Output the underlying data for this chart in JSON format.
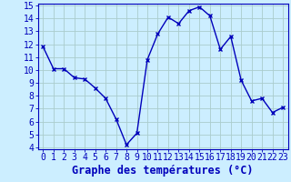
{
  "x": [
    0,
    1,
    2,
    3,
    4,
    5,
    6,
    7,
    8,
    9,
    10,
    11,
    12,
    13,
    14,
    15,
    16,
    17,
    18,
    19,
    20,
    21,
    22,
    23
  ],
  "y": [
    11.8,
    10.1,
    10.1,
    9.4,
    9.3,
    8.6,
    7.8,
    6.2,
    4.2,
    5.1,
    10.8,
    12.8,
    14.1,
    13.6,
    14.6,
    14.9,
    14.2,
    11.6,
    12.6,
    9.2,
    7.6,
    7.8,
    6.7,
    7.1
  ],
  "xlabel": "Graphe des températures (°C)",
  "ylim_min": 4,
  "ylim_max": 15,
  "xlim_min": 0,
  "xlim_max": 23,
  "yticks": [
    4,
    5,
    6,
    7,
    8,
    9,
    10,
    11,
    12,
    13,
    14,
    15
  ],
  "xticks": [
    0,
    1,
    2,
    3,
    4,
    5,
    6,
    7,
    8,
    9,
    10,
    11,
    12,
    13,
    14,
    15,
    16,
    17,
    18,
    19,
    20,
    21,
    22,
    23
  ],
  "line_color": "#0000bb",
  "bg_color": "#cceeff",
  "grid_color": "#aacccc",
  "xlabel_color": "#0000bb",
  "xlabel_fontsize": 8.5,
  "tick_fontsize": 7,
  "line_width": 1.0,
  "marker_size": 3.5,
  "marker_style": "x"
}
